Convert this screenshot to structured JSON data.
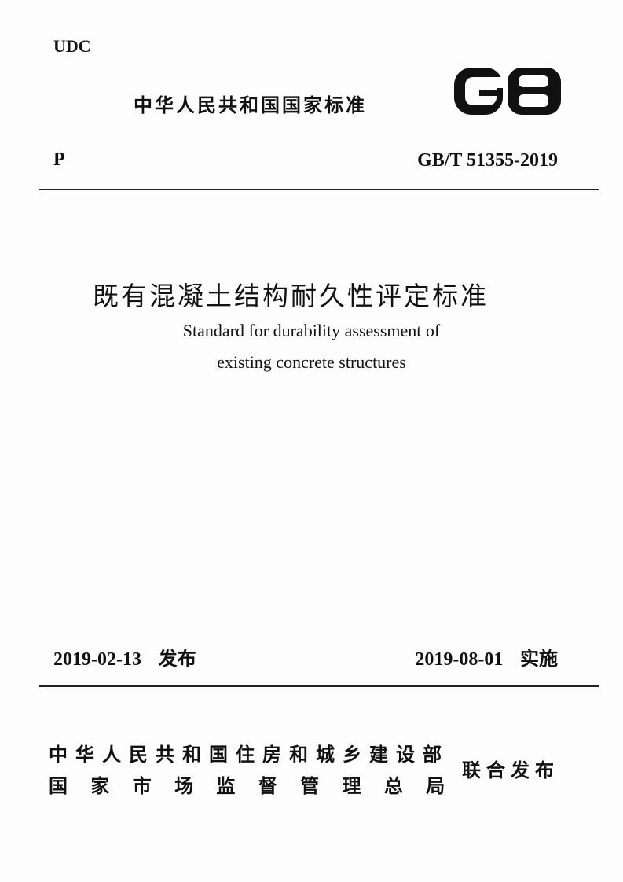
{
  "header": {
    "udc": "UDC",
    "standard_type": "中华人民共和国国家标准",
    "logo_text": "GB",
    "category": "P",
    "code": "GB/T 51355-2019"
  },
  "title": {
    "chinese": "既有混凝土结构耐久性评定标准",
    "english_line1": "Standard for durability assessment of",
    "english_line2": "existing concrete structures"
  },
  "dates": {
    "issue_date": "2019-02-13",
    "issue_label": "发布",
    "effective_date": "2019-08-01",
    "effective_label": "实施"
  },
  "issuers": {
    "line1": "中华人民共和国住房和城乡建设部",
    "line2": "国 家 市 场 监 督 管 理 总 局",
    "joint_label": "联合发布"
  }
}
